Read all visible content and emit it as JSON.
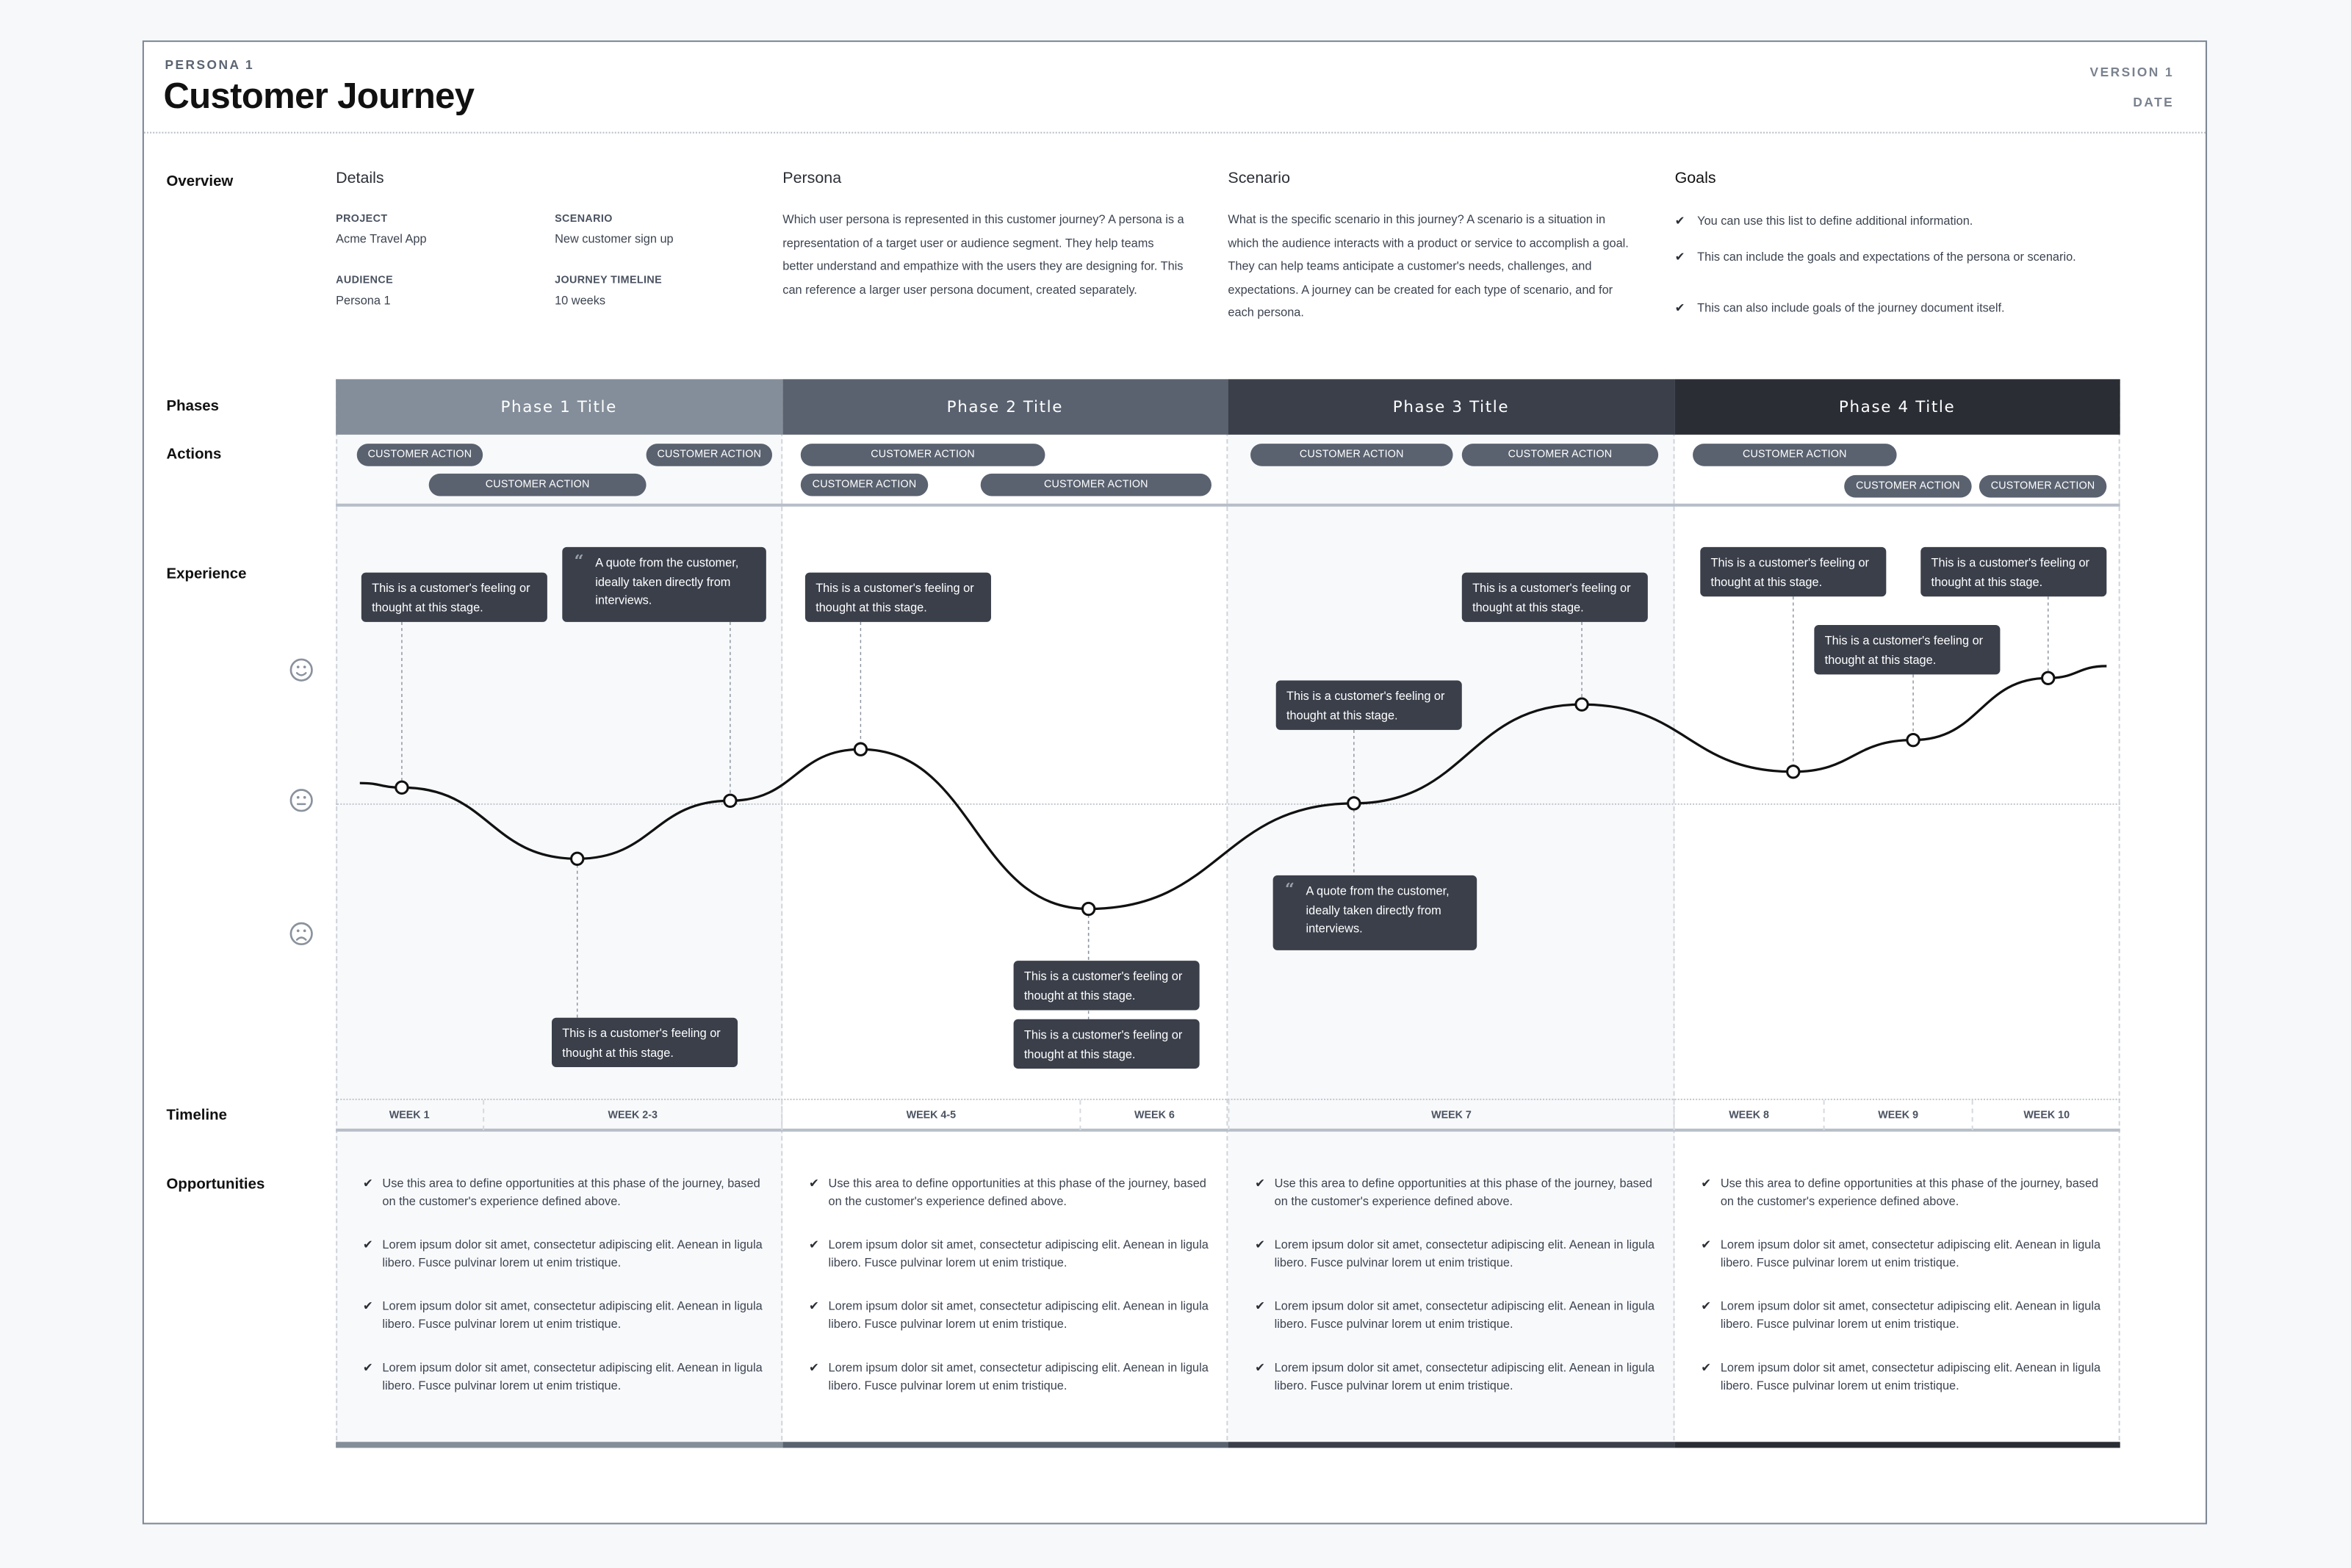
{
  "header": {
    "kicker": "PERSONA 1",
    "title": "Customer Journey",
    "version": "VERSION 1",
    "date": "DATE"
  },
  "row_labels": {
    "overview": "Overview",
    "phases": "Phases",
    "actions": "Actions",
    "experience": "Experience",
    "timeline": "Timeline",
    "opportunities": "Opportunities"
  },
  "overview": {
    "details": {
      "heading": "Details",
      "fields": [
        {
          "label": "PROJECT",
          "value": "Acme Travel App"
        },
        {
          "label": "SCENARIO",
          "value": "New customer sign up"
        },
        {
          "label": "AUDIENCE",
          "value": "Persona 1"
        },
        {
          "label": "JOURNEY TIMELINE",
          "value": "10 weeks"
        }
      ]
    },
    "persona": {
      "heading": "Persona",
      "text": "Which user persona is represented in this customer journey? A persona is a representation of a target user or audience segment. They help teams better understand and empathize with the users they are designing for. This can reference a larger user persona document, created separately."
    },
    "scenario": {
      "heading": "Scenario",
      "text": "What is the specific scenario in this journey? A scenario is a situation in which the audience interacts with a product or service to accomplish a goal. They can help teams anticipate a customer's needs, challenges, and expectations. A journey can be created for each type of scenario, and for each persona."
    },
    "goals": {
      "heading": "Goals",
      "items": [
        "You can use this list to define additional information.",
        "This can include the goals and expectations of the persona or scenario.",
        "This can also include goals of the journey document itself."
      ]
    }
  },
  "phases": [
    {
      "title": "Phase 1 Title",
      "color": "#848e9a",
      "actions": [
        "CUSTOMER ACTION",
        "CUSTOMER ACTION",
        "CUSTOMER ACTION"
      ]
    },
    {
      "title": "Phase 2 Title",
      "color": "#5a6270",
      "actions": [
        "CUSTOMER ACTION",
        "CUSTOMER ACTION",
        "CUSTOMER ACTION"
      ]
    },
    {
      "title": "Phase 3 Title",
      "color": "#3a3f4a",
      "actions": [
        "CUSTOMER ACTION",
        "CUSTOMER ACTION"
      ]
    },
    {
      "title": "Phase 4 Title",
      "color": "#2a2d34",
      "actions": [
        "CUSTOMER ACTION",
        "CUSTOMER ACTION",
        "CUSTOMER ACTION"
      ]
    }
  ],
  "experience": {
    "scale_icons": [
      "happy-face-icon",
      "neutral-face-icon",
      "sad-face-icon"
    ],
    "scores": [
      0.12,
      -0.42,
      0.02,
      0.41,
      -0.8,
      0.0,
      0.75,
      0.24,
      0.48,
      0.95
    ],
    "callouts": [
      {
        "type": "feeling",
        "text": "This is a customer's feeling or thought at this stage."
      },
      {
        "type": "quote",
        "text": "A quote from the customer, ideally taken directly from interviews."
      },
      {
        "type": "feeling",
        "text": "This is a customer's feeling or thought at this stage."
      },
      {
        "type": "feeling",
        "text": "This is a customer's feeling or thought at this stage."
      },
      {
        "type": "feeling",
        "text": "This is a customer's feeling or thought at this stage."
      },
      {
        "type": "feeling",
        "text": "This is a customer's feeling or thought at this stage."
      },
      {
        "type": "feeling",
        "text": "This is a customer's feeling or thought at this stage."
      },
      {
        "type": "quote",
        "text": "A quote from the customer, ideally taken directly from interviews."
      },
      {
        "type": "feeling",
        "text": "This is a customer's feeling or thought at this stage."
      },
      {
        "type": "feeling",
        "text": "This is a customer's feeling or thought at this stage."
      },
      {
        "type": "feeling",
        "text": "This is a customer's feeling or thought at this stage."
      },
      {
        "type": "feeling",
        "text": "This is a customer's feeling or thought at this stage."
      }
    ]
  },
  "timeline": [
    "WEEK 1",
    "WEEK 2-3",
    "WEEK 4-5",
    "WEEK 6",
    "WEEK 7",
    "WEEK 8",
    "WEEK 9",
    "WEEK 10"
  ],
  "opportunities": [
    [
      "Use this area to define opportunities at this phase of the journey, based on the customer's experience defined above.",
      "Lorem ipsum dolor sit amet, consectetur adipiscing elit. Aenean in ligula libero. Fusce pulvinar lorem ut enim tristique.",
      "Lorem ipsum dolor sit amet, consectetur adipiscing elit. Aenean in ligula libero. Fusce pulvinar lorem ut enim tristique.",
      "Lorem ipsum dolor sit amet, consectetur adipiscing elit. Aenean in ligula libero. Fusce pulvinar lorem ut enim tristique."
    ],
    [
      "Use this area to define opportunities at this phase of the journey, based on the customer's experience defined above.",
      "Lorem ipsum dolor sit amet, consectetur adipiscing elit. Aenean in ligula libero. Fusce pulvinar lorem ut enim tristique.",
      "Lorem ipsum dolor sit amet, consectetur adipiscing elit. Aenean in ligula libero. Fusce pulvinar lorem ut enim tristique.",
      "Lorem ipsum dolor sit amet, consectetur adipiscing elit. Aenean in ligula libero. Fusce pulvinar lorem ut enim tristique."
    ],
    [
      "Use this area to define opportunities at this phase of the journey, based on the customer's experience defined above.",
      "Lorem ipsum dolor sit amet, consectetur adipiscing elit. Aenean in ligula libero. Fusce pulvinar lorem ut enim tristique.",
      "Lorem ipsum dolor sit amet, consectetur adipiscing elit. Aenean in ligula libero. Fusce pulvinar lorem ut enim tristique.",
      "Lorem ipsum dolor sit amet, consectetur adipiscing elit. Aenean in ligula libero. Fusce pulvinar lorem ut enim tristique."
    ],
    [
      "Use this area to define opportunities at this phase of the journey, based on the customer's experience defined above.",
      "Lorem ipsum dolor sit amet, consectetur adipiscing elit. Aenean in ligula libero. Fusce pulvinar lorem ut enim tristique.",
      "Lorem ipsum dolor sit amet, consectetur adipiscing elit. Aenean in ligula libero. Fusce pulvinar lorem ut enim tristique.",
      "Lorem ipsum dolor sit amet, consectetur adipiscing elit. Aenean in ligula libero. Fusce pulvinar lorem ut enim tristique."
    ]
  ],
  "check_icon": "check-icon"
}
